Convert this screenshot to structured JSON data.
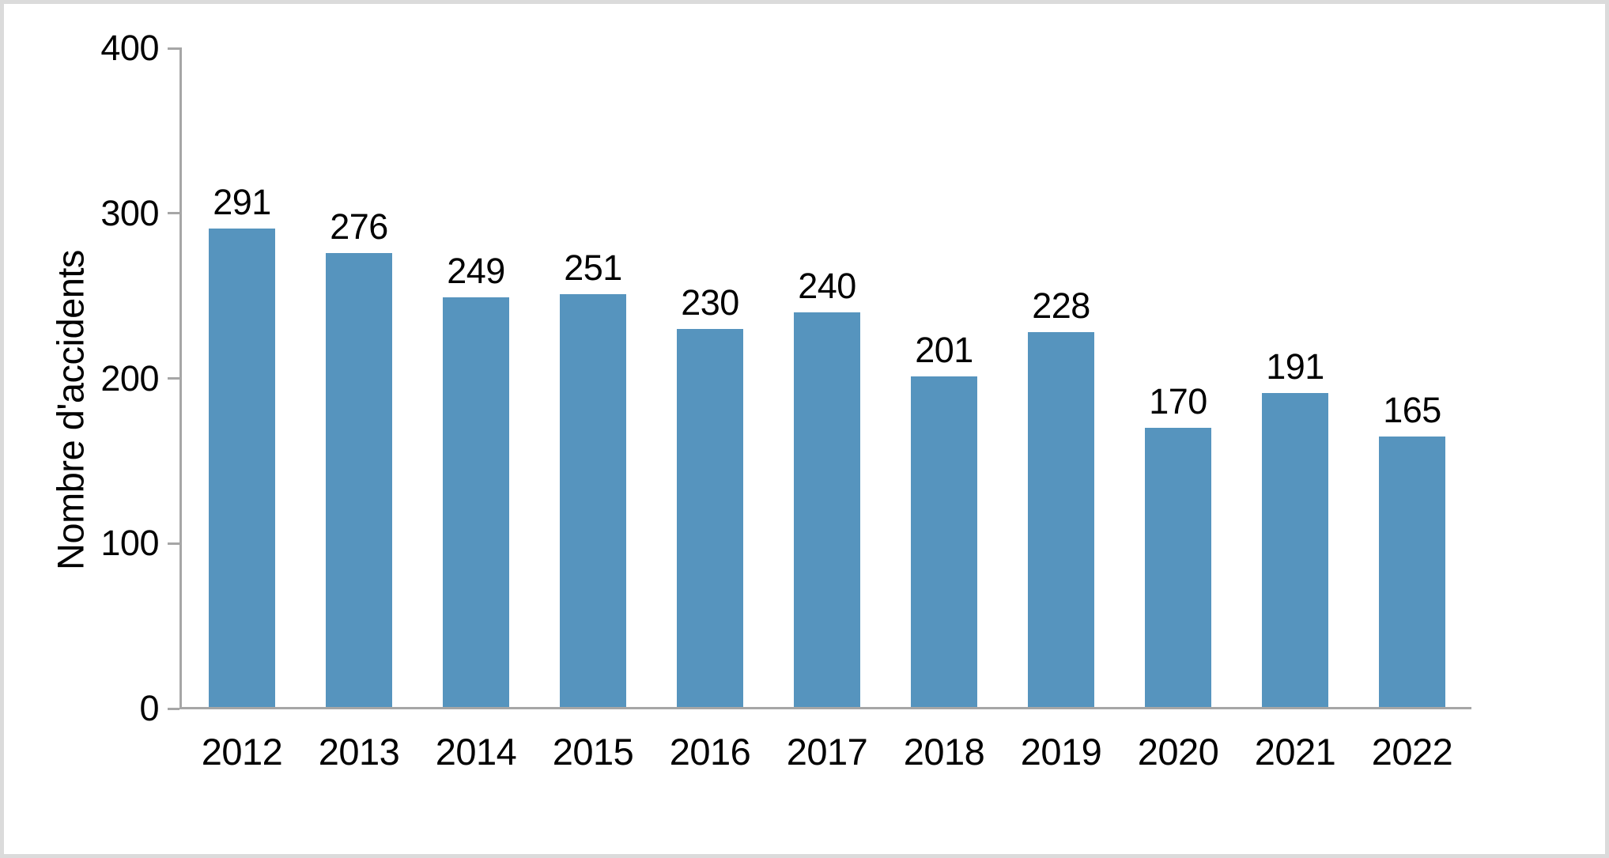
{
  "frame": {
    "background_color": "#ffffff",
    "border_color": "#dbdbdb"
  },
  "chart_data": {
    "type": "bar",
    "categories": [
      "2012",
      "2013",
      "2014",
      "2015",
      "2016",
      "2017",
      "2018",
      "2019",
      "2020",
      "2021",
      "2022"
    ],
    "values": [
      291,
      276,
      249,
      251,
      230,
      240,
      201,
      228,
      170,
      191,
      165
    ],
    "title": "",
    "xlabel": "",
    "ylabel": "Nombre d'accidents",
    "ylim": [
      0,
      400
    ],
    "yticks": [
      0,
      100,
      200,
      300,
      400
    ],
    "data_labels": true,
    "grid": false,
    "legend": false,
    "bar_color": "#5694be",
    "axis_color": "#a6a6a6",
    "text_color": "#000000"
  }
}
